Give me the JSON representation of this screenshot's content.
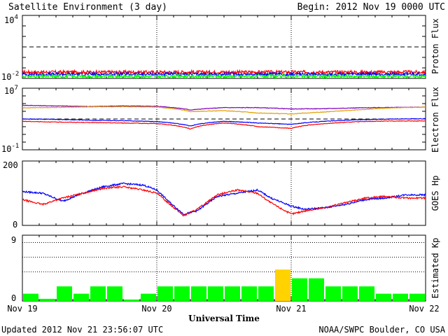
{
  "header": {
    "title": "Satellite Environment (3 day)",
    "begin": "Begin:  2012 Nov 19 0000 UTC"
  },
  "footer": {
    "updated": "Updated 2012 Nov 21 23:56:07 UTC",
    "credit": "NOAA/SWPC Boulder, CO USA"
  },
  "xaxis": {
    "title": "Universal Time",
    "ticks": [
      "Nov 19",
      "Nov 20",
      "Nov 21",
      "Nov 22"
    ],
    "range_days": [
      0,
      3
    ]
  },
  "colors": {
    "red": "#ff0000",
    "blue": "#0000ff",
    "green": "#00ff00",
    "purple": "#8000c0",
    "orange": "#e0a000",
    "kp_green": "#00ff00",
    "kp_yellow": "#ffd200"
  },
  "chart_data": [
    {
      "type": "line",
      "title": "",
      "ylabel": "Proton Flux",
      "yscale": "log",
      "ylim": [
        0.01,
        10000
      ],
      "ytick_labels": {
        "top_base": "10",
        "top_exp": "4",
        "bottom_base": "10",
        "bottom_exp": "-2"
      },
      "threshold": 10,
      "x_days": [
        0,
        0.25,
        0.5,
        0.75,
        1,
        1.25,
        1.5,
        1.75,
        2,
        2.25,
        2.5,
        2.75,
        3
      ],
      "series": [
        {
          "color": "red",
          "values": [
            0.04,
            0.04,
            0.04,
            0.04,
            0.04,
            0.04,
            0.04,
            0.04,
            0.04,
            0.04,
            0.04,
            0.04,
            0.04
          ]
        },
        {
          "color": "blue",
          "values": [
            0.025,
            0.025,
            0.025,
            0.025,
            0.025,
            0.025,
            0.025,
            0.025,
            0.025,
            0.025,
            0.025,
            0.025,
            0.025
          ]
        },
        {
          "color": "green",
          "values": [
            0.016,
            0.016,
            0.016,
            0.016,
            0.016,
            0.016,
            0.016,
            0.016,
            0.016,
            0.016,
            0.016,
            0.016,
            0.016
          ]
        }
      ]
    },
    {
      "type": "line",
      "title": "",
      "ylabel": "Electron Flux",
      "yscale": "log",
      "ylim": [
        0.1,
        10000000
      ],
      "ytick_labels": {
        "top_base": "10",
        "top_exp": "7",
        "bottom_base": "10",
        "bottom_exp": "-1"
      },
      "threshold": 1000,
      "x_days": [
        0,
        0.25,
        0.5,
        0.75,
        1,
        1.25,
        1.5,
        1.75,
        2,
        2.25,
        2.5,
        2.75,
        3
      ],
      "series": [
        {
          "color": "purple",
          "values": [
            60000,
            50000,
            42000,
            50000,
            45000,
            15000,
            30000,
            30000,
            20000,
            22000,
            28000,
            32000,
            35000
          ]
        },
        {
          "color": "orange",
          "values": [
            28000,
            32000,
            38000,
            40000,
            35000,
            9000,
            12000,
            6000,
            4500,
            8000,
            15000,
            28000,
            35000
          ]
        },
        {
          "color": "blue",
          "values": [
            1000,
            900,
            700,
            600,
            450,
            120,
            500,
            300,
            200,
            500,
            800,
            1000,
            1100
          ]
        },
        {
          "color": "red",
          "values": [
            500,
            400,
            350,
            300,
            250,
            50,
            300,
            100,
            60,
            250,
            450,
            550,
            550
          ]
        }
      ]
    },
    {
      "type": "line",
      "title": "",
      "ylabel": "GOES Hp",
      "ylim": [
        0,
        200
      ],
      "ytick_labels": [
        "0",
        "200"
      ],
      "x_days": [
        0,
        0.15,
        0.3,
        0.45,
        0.6,
        0.75,
        0.9,
        1.0,
        1.1,
        1.2,
        1.3,
        1.45,
        1.6,
        1.75,
        1.85,
        2.0,
        2.1,
        2.25,
        2.4,
        2.55,
        2.7,
        2.85,
        3
      ],
      "series": [
        {
          "color": "blue",
          "values": [
            105,
            100,
            75,
            100,
            120,
            130,
            125,
            110,
            70,
            35,
            45,
            90,
            100,
            110,
            85,
            60,
            50,
            55,
            65,
            80,
            85,
            95,
            95
          ]
        },
        {
          "color": "red",
          "values": [
            80,
            65,
            85,
            100,
            115,
            120,
            110,
            100,
            65,
            30,
            50,
            95,
            110,
            100,
            70,
            35,
            45,
            55,
            70,
            85,
            90,
            85,
            85
          ]
        }
      ]
    },
    {
      "type": "bar",
      "title": "",
      "ylabel": "Estimated Kp",
      "ylim": [
        0,
        9
      ],
      "ytick_labels": [
        "0",
        "9"
      ],
      "grid_levels": [
        4,
        6,
        8
      ],
      "interval_hours": 3,
      "values": [
        1,
        0.3,
        2,
        1,
        2,
        2,
        0.2,
        1,
        2,
        2,
        2,
        2,
        2,
        2,
        2,
        4.3,
        3.1,
        3.1,
        2,
        2,
        2,
        1,
        1,
        1
      ],
      "highlight_min": 4
    }
  ]
}
